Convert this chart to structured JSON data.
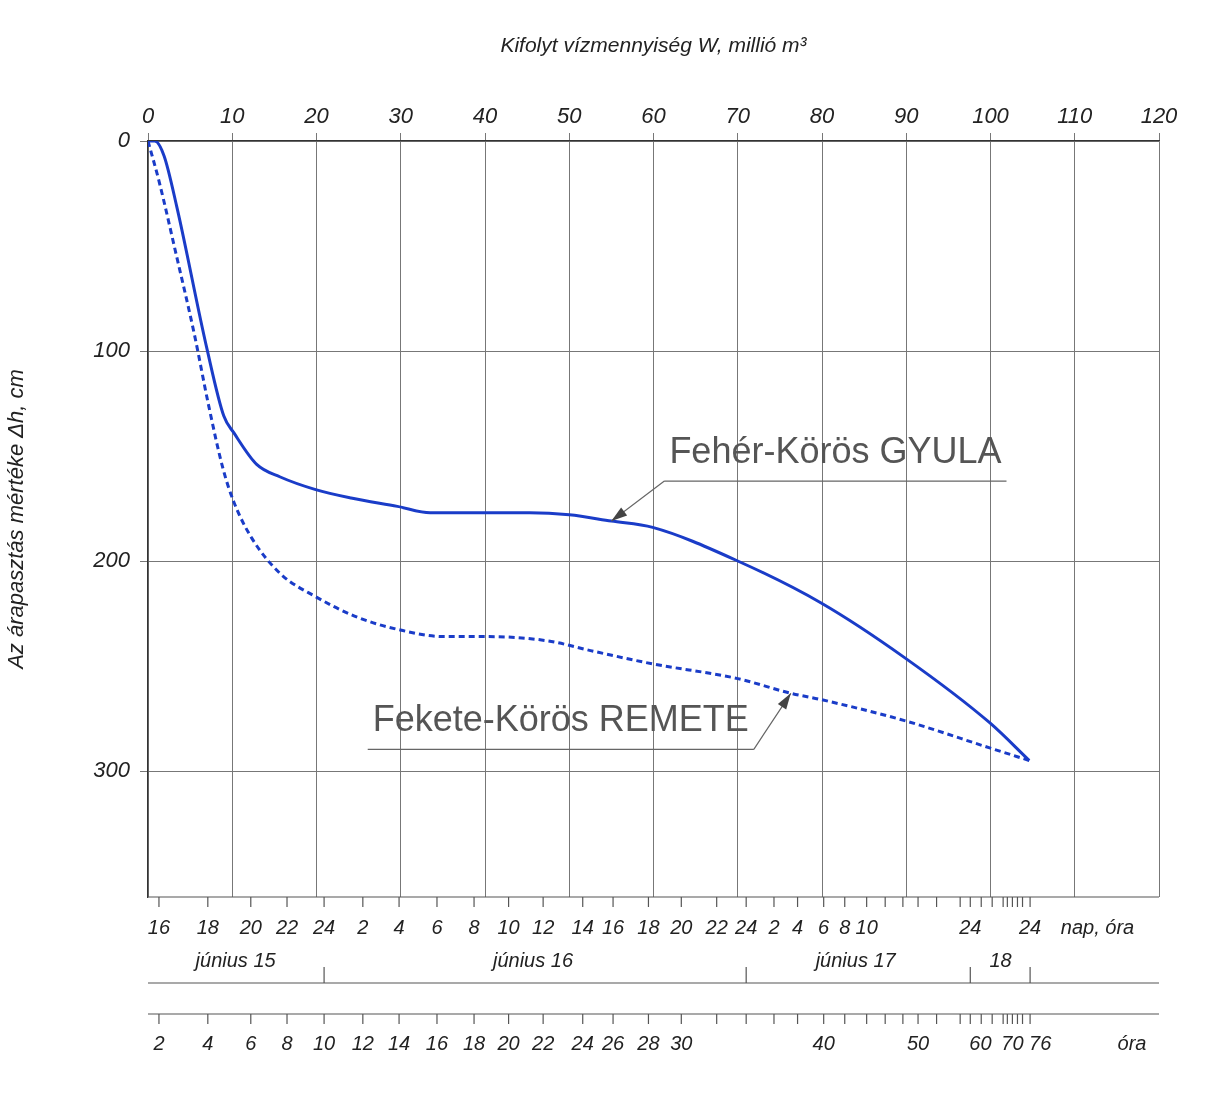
{
  "chart_data": {
    "type": "line",
    "xlabel": "Kifolyt vízmennyiség W, millió m³",
    "ylabel": "Az árapasztás mértéke Δh, cm",
    "xlim": [
      0,
      120
    ],
    "xticks": [
      0,
      10,
      20,
      30,
      40,
      50,
      60,
      70,
      80,
      90,
      100,
      110,
      120
    ],
    "ylim": [
      360,
      0
    ],
    "yticks": [
      0,
      100,
      200,
      300
    ],
    "grid": true,
    "series": [
      {
        "color": "#1a3cc8",
        "line_style": "solid",
        "x": [
          0,
          0.8,
          1.9,
          3.4,
          7.0,
          9.0,
          10.2,
          12.9,
          15.7,
          19.9,
          24.1,
          29.6,
          33.5,
          39.8,
          45.3,
          50.0,
          55.0,
          59.9,
          70.0,
          79.9,
          89.8,
          99.9,
          104.6
        ],
        "values": [
          0,
          0,
          7,
          31,
          99,
          131,
          139,
          154,
          160,
          166,
          170,
          174,
          177,
          177,
          177,
          178,
          181,
          184,
          200,
          220,
          246,
          277,
          295
        ]
      },
      {
        "color": "#1a3cc8",
        "line_style": "dashed",
        "x": [
          0,
          1.3,
          3.4,
          5.5,
          7.2,
          8.9,
          10.2,
          12.3,
          15.7,
          19.9,
          25.0,
          30.1,
          35.1,
          40.2,
          47.4,
          52.9,
          59.9,
          70.0,
          76.3,
          79.9,
          89.8,
          99.9,
          104.6
        ],
        "values": [
          0,
          19,
          55,
          92,
          126,
          156,
          172,
          189,
          206,
          217,
          227,
          233,
          236,
          236,
          238,
          243,
          249,
          256,
          263,
          266,
          276,
          289,
          295
        ]
      }
    ],
    "annotations": [
      {
        "text": "Fehér-Körös GYULA",
        "x": 55.0,
        "y": 181
      },
      {
        "text": "Fekete-Körös REMETE",
        "x": 76.3,
        "y": 263
      },
      "16 18 20 22 24 2 4 6 8 10 12 14 16 18 20 22 24 2 4 6 8 10 24 24",
      "nap, óra",
      "június 15",
      "június 16",
      "június 17",
      "18",
      "2 4 6 8 10 12 14 16 18 20 22 24 26 28 30 40 50 60 70 76",
      "óra"
    ],
    "legend": false
  }
}
